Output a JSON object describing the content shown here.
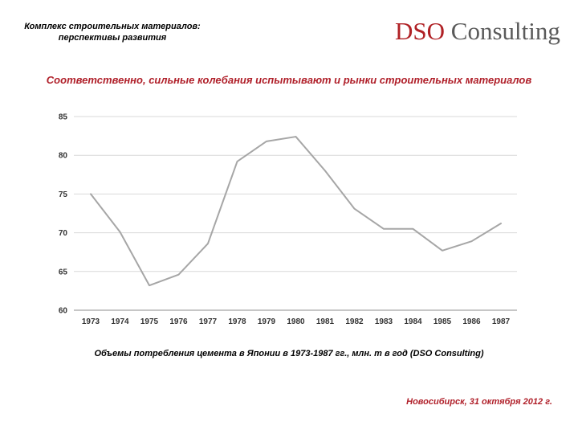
{
  "header": {
    "title_line1": "Комплекс строительных материалов:",
    "title_line2": "перспективы развития"
  },
  "logo": {
    "brand": "DSO",
    "brand_suffix": "Consulting",
    "brand_color": "#b02125",
    "suffix_color": "#5a5a5a"
  },
  "subtitle": "Соответственно, сильные колебания испытывают и рынки строительных материалов",
  "caption": "Объемы потребления цемента в Японии в 1973-1987 гг., млн. т в год (DSO Consulting)",
  "footer": {
    "date": "Новосибирск, 31 октября 2012 г."
  },
  "accent_color": "#b0202a",
  "chart_data": {
    "type": "line",
    "title": "",
    "xlabel": "",
    "ylabel": "",
    "categories": [
      "1973",
      "1974",
      "1975",
      "1976",
      "1977",
      "1978",
      "1979",
      "1980",
      "1981",
      "1982",
      "1983",
      "1984",
      "1985",
      "1986",
      "1987"
    ],
    "series": [
      {
        "name": "",
        "values": [
          75.0,
          70.1,
          63.2,
          64.6,
          68.6,
          79.2,
          81.8,
          82.4,
          78.0,
          73.1,
          70.5,
          70.5,
          67.7,
          68.9,
          71.2
        ],
        "color": "#a6a6a6"
      }
    ],
    "yticks": [
      60,
      65,
      70,
      75,
      80,
      85
    ],
    "ylim": [
      60,
      85
    ],
    "grid": true,
    "legend": "none"
  }
}
